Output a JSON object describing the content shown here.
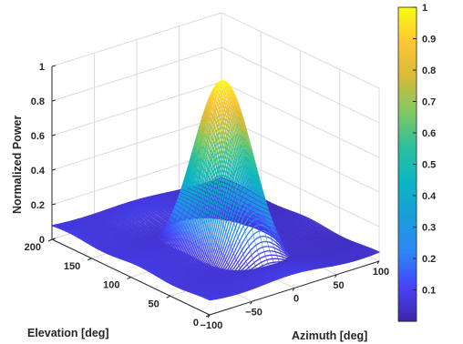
{
  "chart_data": {
    "type": "surface",
    "title": "",
    "xlabel": "Azimuth [deg]",
    "ylabel": "Elevation [deg]",
    "zlabel": "Normalized Power",
    "xlim": [
      -100,
      100
    ],
    "ylim": [
      0,
      200
    ],
    "zlim": [
      0,
      1
    ],
    "xticks": [
      -100,
      -50,
      0,
      50,
      100
    ],
    "yticks": [
      0,
      50,
      100,
      150,
      200
    ],
    "zticks": [
      0,
      0.2,
      0.4,
      0.6,
      0.8,
      1
    ],
    "grid": true,
    "colormap": "parula",
    "colorbar": {
      "range": [
        0,
        1
      ],
      "ticks": [
        0.1,
        0.2,
        0.3,
        0.4,
        0.5,
        0.6,
        0.7,
        0.8,
        0.9,
        1
      ]
    },
    "peak": {
      "azimuth": 0,
      "elevation": 90,
      "value": 1.0
    },
    "mainlobe_width_deg": {
      "azimuth": 22,
      "elevation": 28
    },
    "sidelobe_level": 0.06,
    "floor_level": 0.1,
    "colormap_stops": [
      "#3e26a8",
      "#4743f8",
      "#2e87f7",
      "#199dd8",
      "#0bb6c3",
      "#2bc09b",
      "#7fc862",
      "#d4bb3b",
      "#fec635",
      "#f9fb15"
    ]
  }
}
